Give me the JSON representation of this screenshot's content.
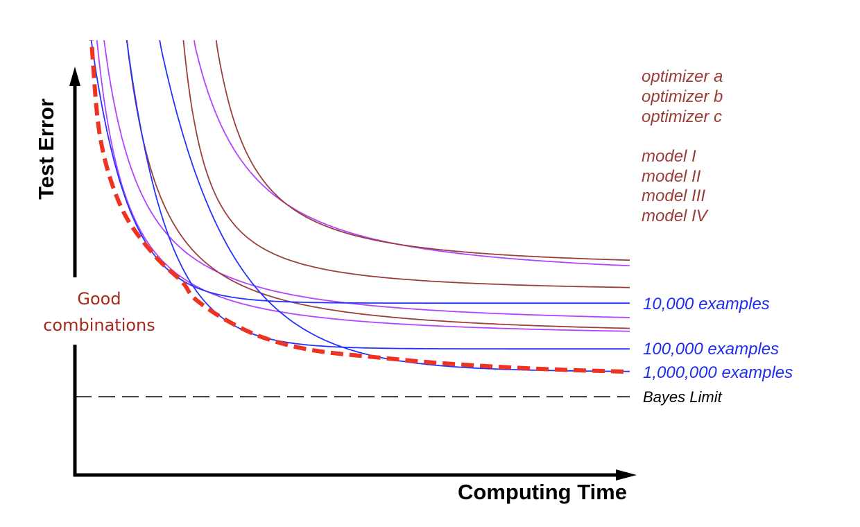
{
  "chart_data": {
    "type": "line",
    "title": "",
    "xlabel": "Computing Time",
    "ylabel": "Test Error",
    "xlim": [
      0,
      10
    ],
    "ylim": [
      0,
      10.4
    ],
    "grid": false,
    "colors": {
      "blue": "#2233ff",
      "purple": "#b044ff",
      "brown": "#9a3f3c",
      "red": "#ee3322",
      "label_brown": "#9a3b35",
      "label_blue": "#1f2cf0",
      "good": "#a52a1e"
    },
    "legend_brown": [
      "optimizer a",
      "optimizer b",
      "optimizer c",
      "model I",
      "model II",
      "model III",
      "model IV"
    ],
    "legend_blue": [
      "10,000 examples",
      "100,000 examples",
      "1,000,000 examples"
    ],
    "series": [
      {
        "name": "10,000 examples",
        "color": "blue",
        "form": "exp",
        "x_start": 0.3,
        "asymptote": 4.13,
        "tau": 0.67
      },
      {
        "name": "100,000 examples",
        "color": "blue",
        "form": "exp",
        "x_start": 0.94,
        "asymptote": 3.03,
        "tau": 0.75
      },
      {
        "name": "1,000,000 examples",
        "color": "blue",
        "form": "exp",
        "x_start": 1.53,
        "asymptote": 2.48,
        "tau": 1.27
      },
      {
        "name": "purple curve 1",
        "color": "purple",
        "form": "power",
        "x_start": 0.4,
        "asymptote": 3.3,
        "offset": -0.41
      },
      {
        "name": "purple curve 2",
        "color": "purple",
        "form": "power",
        "x_start": 0.53,
        "asymptote": 3.58,
        "offset": -0.48
      },
      {
        "name": "purple curve 3",
        "color": "purple",
        "form": "power",
        "x_start": 2.15,
        "asymptote": 4.67,
        "offset": 0.68
      },
      {
        "name": "brown curve 1",
        "color": "brown",
        "form": "power",
        "x_start": 0.94,
        "asymptote": 3.32,
        "offset": 0.0
      },
      {
        "name": "brown curve 2",
        "color": "brown",
        "form": "power",
        "x_start": 1.96,
        "asymptote": 4.38,
        "offset": 1.3
      },
      {
        "name": "brown curve 3",
        "color": "brown",
        "form": "power",
        "x_start": 2.55,
        "asymptote": 4.95,
        "offset": 1.58
      }
    ],
    "envelope": {
      "name": "Good combinations",
      "x": [
        0.3,
        0.46,
        0.84,
        1.4,
        1.94,
        2.15,
        2.69,
        3.4,
        4.28,
        5.5,
        6.78,
        8.4,
        10
      ],
      "y": [
        10.4,
        8.08,
        6.42,
        5.33,
        4.63,
        4.25,
        3.75,
        3.3,
        3.0,
        2.82,
        2.67,
        2.55,
        2.48
      ]
    },
    "bayes_limit": {
      "label": "Bayes Limit",
      "y": 1.88
    },
    "annotation": [
      "Good",
      "combinations"
    ]
  }
}
